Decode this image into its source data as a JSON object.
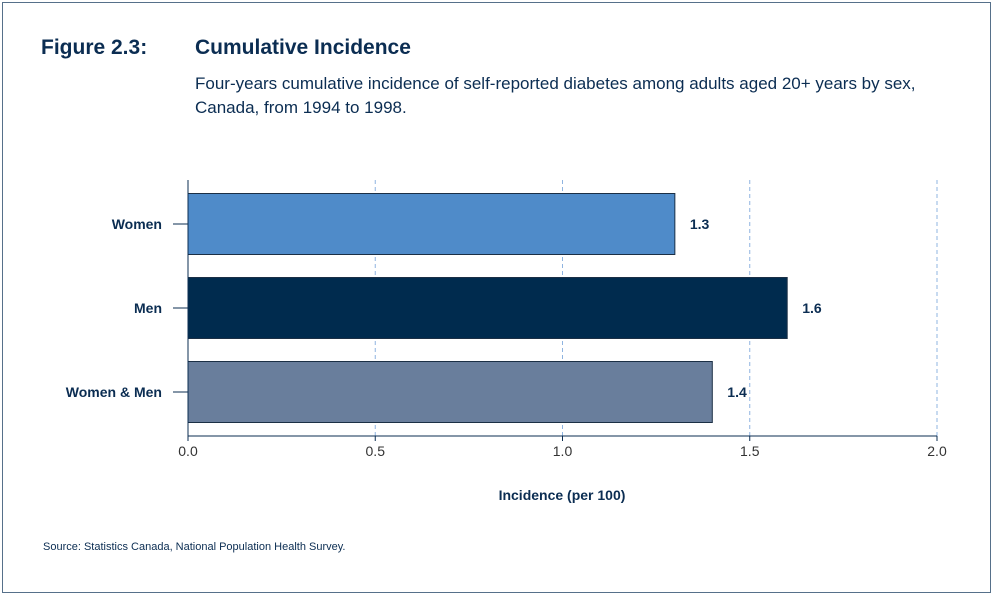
{
  "figure": {
    "number": "Figure 2.3:",
    "title": "Cumulative Incidence",
    "subtitle": "Four-years cumulative incidence of self-reported diabetes among adults aged 20+ years by sex, Canada, from 1994 to 1998.",
    "source": "Source: Statistics Canada, National Population Health Survey."
  },
  "chart_data": {
    "type": "bar",
    "orientation": "horizontal",
    "categories": [
      "Women",
      "Men",
      "Women & Men"
    ],
    "values": [
      1.3,
      1.6,
      1.4
    ],
    "value_labels": [
      "1.3",
      "1.6",
      "1.4"
    ],
    "colors": [
      "#4f8bc9",
      "#002b4e",
      "#697e9c"
    ],
    "title": "Cumulative Incidence",
    "xlabel": "Incidence (per 100)",
    "ylabel": "",
    "xlim": [
      0,
      2.0
    ],
    "xticks": [
      0,
      0.5,
      1.0,
      1.5,
      2.0
    ],
    "xtick_labels": [
      "0.0",
      "0.5",
      "1.0",
      "1.5",
      "2.0"
    ],
    "grid": "vertical-dashed",
    "legend": "none",
    "gridline_color": "#8fb4e0",
    "axis_color": "#0b2d52"
  }
}
